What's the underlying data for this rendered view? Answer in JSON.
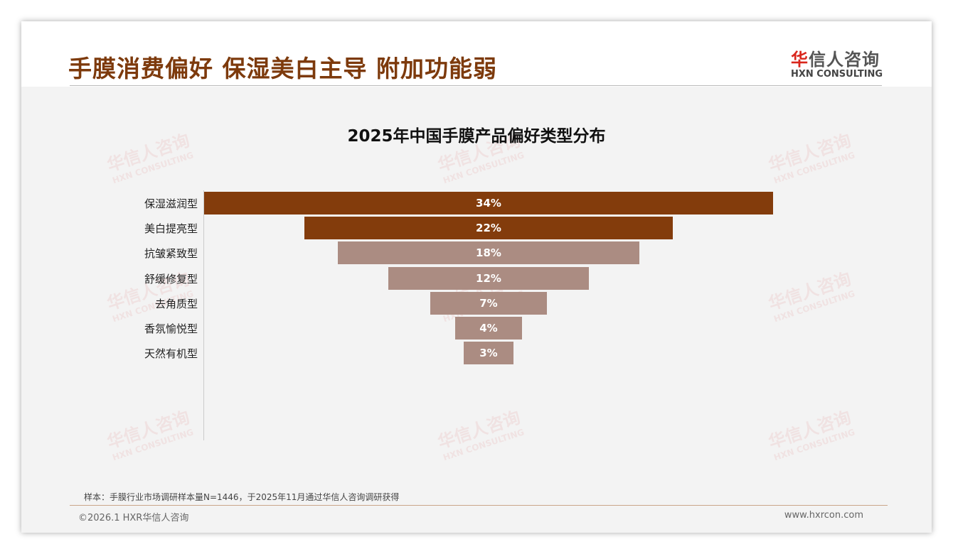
{
  "header": {
    "title": "手膜消费偏好 保湿美白主导 附加功能弱",
    "logo_cn_first": "华",
    "logo_cn_rest": "信人咨询",
    "logo_en": "HXN CONSULTING"
  },
  "watermark": {
    "cn": "华信人咨询",
    "en": "HXN CONSULTING"
  },
  "chart_data": {
    "type": "bar",
    "subtype": "funnel",
    "title": "2025年中国手膜产品偏好类型分布",
    "categories": [
      "保湿滋润型",
      "美白提亮型",
      "抗皱紧致型",
      "舒缓修复型",
      "去角质型",
      "香氛愉悦型",
      "天然有机型"
    ],
    "values": [
      34,
      22,
      18,
      12,
      7,
      4,
      3
    ],
    "labels": [
      "34%",
      "22%",
      "18%",
      "12%",
      "7%",
      "4%",
      "3%"
    ],
    "colors": [
      "#833c0c",
      "#833c0c",
      "#ab8c82",
      "#ab8c82",
      "#ab8c82",
      "#ab8c82",
      "#ab8c82"
    ],
    "xlabel": "",
    "ylabel": "",
    "unit": "%"
  },
  "footer": {
    "note": "样本：手膜行业市场调研样本量N=1446，于2025年11月通过华信人咨询调研获得",
    "copyright": "©2026.1 HXR华信人咨询",
    "url": "www.hxrcon.com"
  }
}
